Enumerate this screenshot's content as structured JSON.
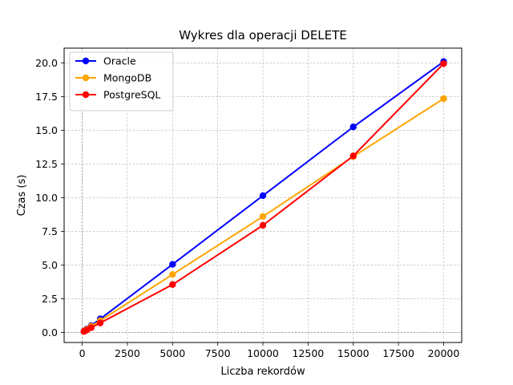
{
  "chart_data": {
    "type": "line",
    "title": "Wykres dla operacji DELETE",
    "xlabel": "Liczba rekordów",
    "ylabel": "Czas (s)",
    "x": [
      100,
      250,
      500,
      1000,
      5000,
      10000,
      15000,
      20000
    ],
    "xlim": [
      -1000,
      21000
    ],
    "ylim": [
      -0.75,
      21.1
    ],
    "xticks": [
      0,
      2500,
      5000,
      7500,
      10000,
      12500,
      15000,
      17500,
      20000
    ],
    "xtick_labels": [
      "0",
      "2500",
      "5000",
      "7500",
      "10000",
      "12500",
      "15000",
      "17500",
      "20000"
    ],
    "yticks": [
      0,
      2.5,
      5,
      7.5,
      10,
      12.5,
      15,
      17.5,
      20
    ],
    "ytick_labels": [
      "0.0",
      "2.5",
      "5.0",
      "7.5",
      "10.0",
      "12.5",
      "15.0",
      "17.5",
      "20.0"
    ],
    "grid": true,
    "grid_style": "dashed",
    "reference_lines": {
      "x": 0,
      "y": 0
    },
    "legend_position": "upper left",
    "series": [
      {
        "name": "Oracle",
        "color": "#0000ff",
        "values": [
          0.1,
          0.25,
          0.5,
          1.0,
          5.05,
          10.15,
          15.25,
          20.1
        ]
      },
      {
        "name": "MongoDB",
        "color": "#ffa500",
        "values": [
          0.09,
          0.22,
          0.45,
          0.87,
          4.3,
          8.6,
          13.05,
          17.35
        ]
      },
      {
        "name": "PostgreSQL",
        "color": "#ff0000",
        "values": [
          0.07,
          0.17,
          0.35,
          0.7,
          3.55,
          7.95,
          13.1,
          19.95
        ]
      }
    ]
  }
}
